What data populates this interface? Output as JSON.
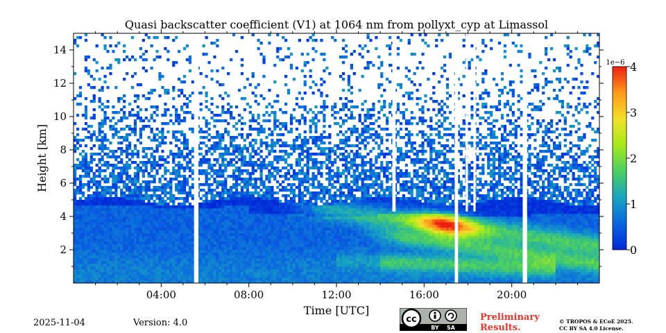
{
  "chart_data": {
    "type": "heatmap",
    "title": "Quasi backscatter coefficient (V1) at 1064 nm from pollyxt_cyp at Limassol",
    "xlabel": "Time [UTC]",
    "ylabel": "Height [km]",
    "x_unit": "hours UTC",
    "xlim": [
      0,
      24
    ],
    "ylim": [
      0,
      15
    ],
    "x_ticks": [
      {
        "value": 4,
        "label": "04:00"
      },
      {
        "value": 8,
        "label": "08:00"
      },
      {
        "value": 12,
        "label": "12:00"
      },
      {
        "value": 16,
        "label": "16:00"
      },
      {
        "value": 20,
        "label": "20:00"
      }
    ],
    "y_ticks": [
      {
        "value": 2,
        "label": "2"
      },
      {
        "value": 4,
        "label": "4"
      },
      {
        "value": 6,
        "label": "6"
      },
      {
        "value": 8,
        "label": "8"
      },
      {
        "value": 10,
        "label": "10"
      },
      {
        "value": 12,
        "label": "12"
      },
      {
        "value": 14,
        "label": "14"
      }
    ],
    "colorbar": {
      "min": 0,
      "max": 4,
      "scale_label": "1e−6",
      "ticks": [
        {
          "value": 0,
          "label": "0"
        },
        {
          "value": 1,
          "label": "1"
        },
        {
          "value": 2,
          "label": "2"
        },
        {
          "value": 3,
          "label": "3"
        },
        {
          "value": 4,
          "label": "4"
        }
      ],
      "colormap": [
        "#0028d8",
        "#0a64e0",
        "#18a6c0",
        "#4ccf62",
        "#a6ea1a",
        "#f2e02a",
        "#ff9a1a",
        "#ee2012"
      ]
    },
    "data_gaps_hours": [
      {
        "start": 5.5,
        "end": 5.7
      },
      {
        "start": 14.55,
        "end": 14.7
      },
      {
        "start": 20.5,
        "end": 20.7
      },
      {
        "start": 17.4,
        "end": 17.55
      },
      {
        "start": 17.9,
        "end": 18.0
      },
      {
        "start": 18.25,
        "end": 18.35
      }
    ],
    "layers": [
      {
        "name": "aerosol layer top",
        "start_hour": 0,
        "end_hour": 24,
        "height_km": 4.6
      },
      {
        "name": "elevated plume",
        "start_hour": 9.5,
        "end_hour": 24,
        "height_km": 3.5,
        "peak_hour": 17,
        "peak_value": 3.6
      }
    ]
  },
  "footer": {
    "date": "2025-11-04",
    "version": "Version: 4.0",
    "license_badge": {
      "cc": "cc",
      "by": "BY",
      "sa": "SA"
    },
    "preliminary_line1": "Preliminary",
    "preliminary_line2": "Results.",
    "copyright_line1": "© TROPOS & ECoE 2025.",
    "copyright_line2": "CC BY SA 4.0 License."
  }
}
